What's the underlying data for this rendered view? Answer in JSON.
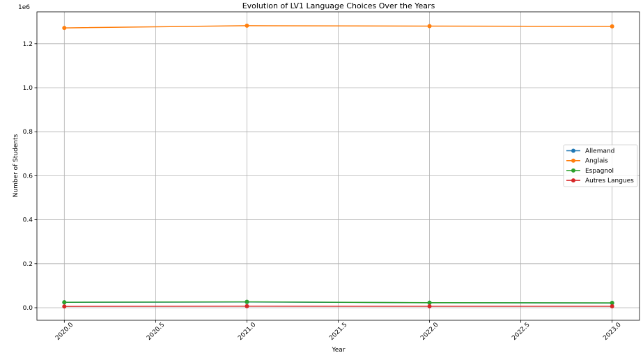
{
  "chart_data": {
    "type": "line",
    "title": "Evolution of LV1 Language Choices Over the Years",
    "xlabel": "Year",
    "ylabel": "Number of Students",
    "y_offset_label": "1e6",
    "x": [
      2020,
      2021,
      2022,
      2023
    ],
    "xlim": [
      2019.85,
      2023.15
    ],
    "ylim": [
      -57000,
      1345000
    ],
    "grid": true,
    "legend_position": "center right",
    "x_ticks": [
      {
        "value": 2020.0,
        "label": "2020.0"
      },
      {
        "value": 2020.5,
        "label": "2020.5"
      },
      {
        "value": 2021.0,
        "label": "2021.0"
      },
      {
        "value": 2021.5,
        "label": "2021.5"
      },
      {
        "value": 2022.0,
        "label": "2022.0"
      },
      {
        "value": 2022.5,
        "label": "2022.5"
      },
      {
        "value": 2023.0,
        "label": "2023.0"
      }
    ],
    "y_ticks": [
      {
        "value": 0,
        "label": "0.0"
      },
      {
        "value": 200000,
        "label": "0.2"
      },
      {
        "value": 400000,
        "label": "0.4"
      },
      {
        "value": 600000,
        "label": "0.6"
      },
      {
        "value": 800000,
        "label": "0.8"
      },
      {
        "value": 1000000,
        "label": "1.0"
      },
      {
        "value": 1200000,
        "label": "1.2"
      }
    ],
    "series": [
      {
        "name": "Allemand",
        "color": "#1f77b4",
        "values": [
          24500,
          26000,
          22500,
          21500
        ]
      },
      {
        "name": "Anglais",
        "color": "#ff7f0e",
        "values": [
          1272000,
          1282000,
          1280000,
          1279000
        ]
      },
      {
        "name": "Espagnol",
        "color": "#2ca02c",
        "values": [
          25000,
          27000,
          23000,
          22000
        ]
      },
      {
        "name": "Autres Langues",
        "color": "#d62728",
        "values": [
          6000,
          7000,
          6500,
          6500
        ]
      }
    ]
  }
}
